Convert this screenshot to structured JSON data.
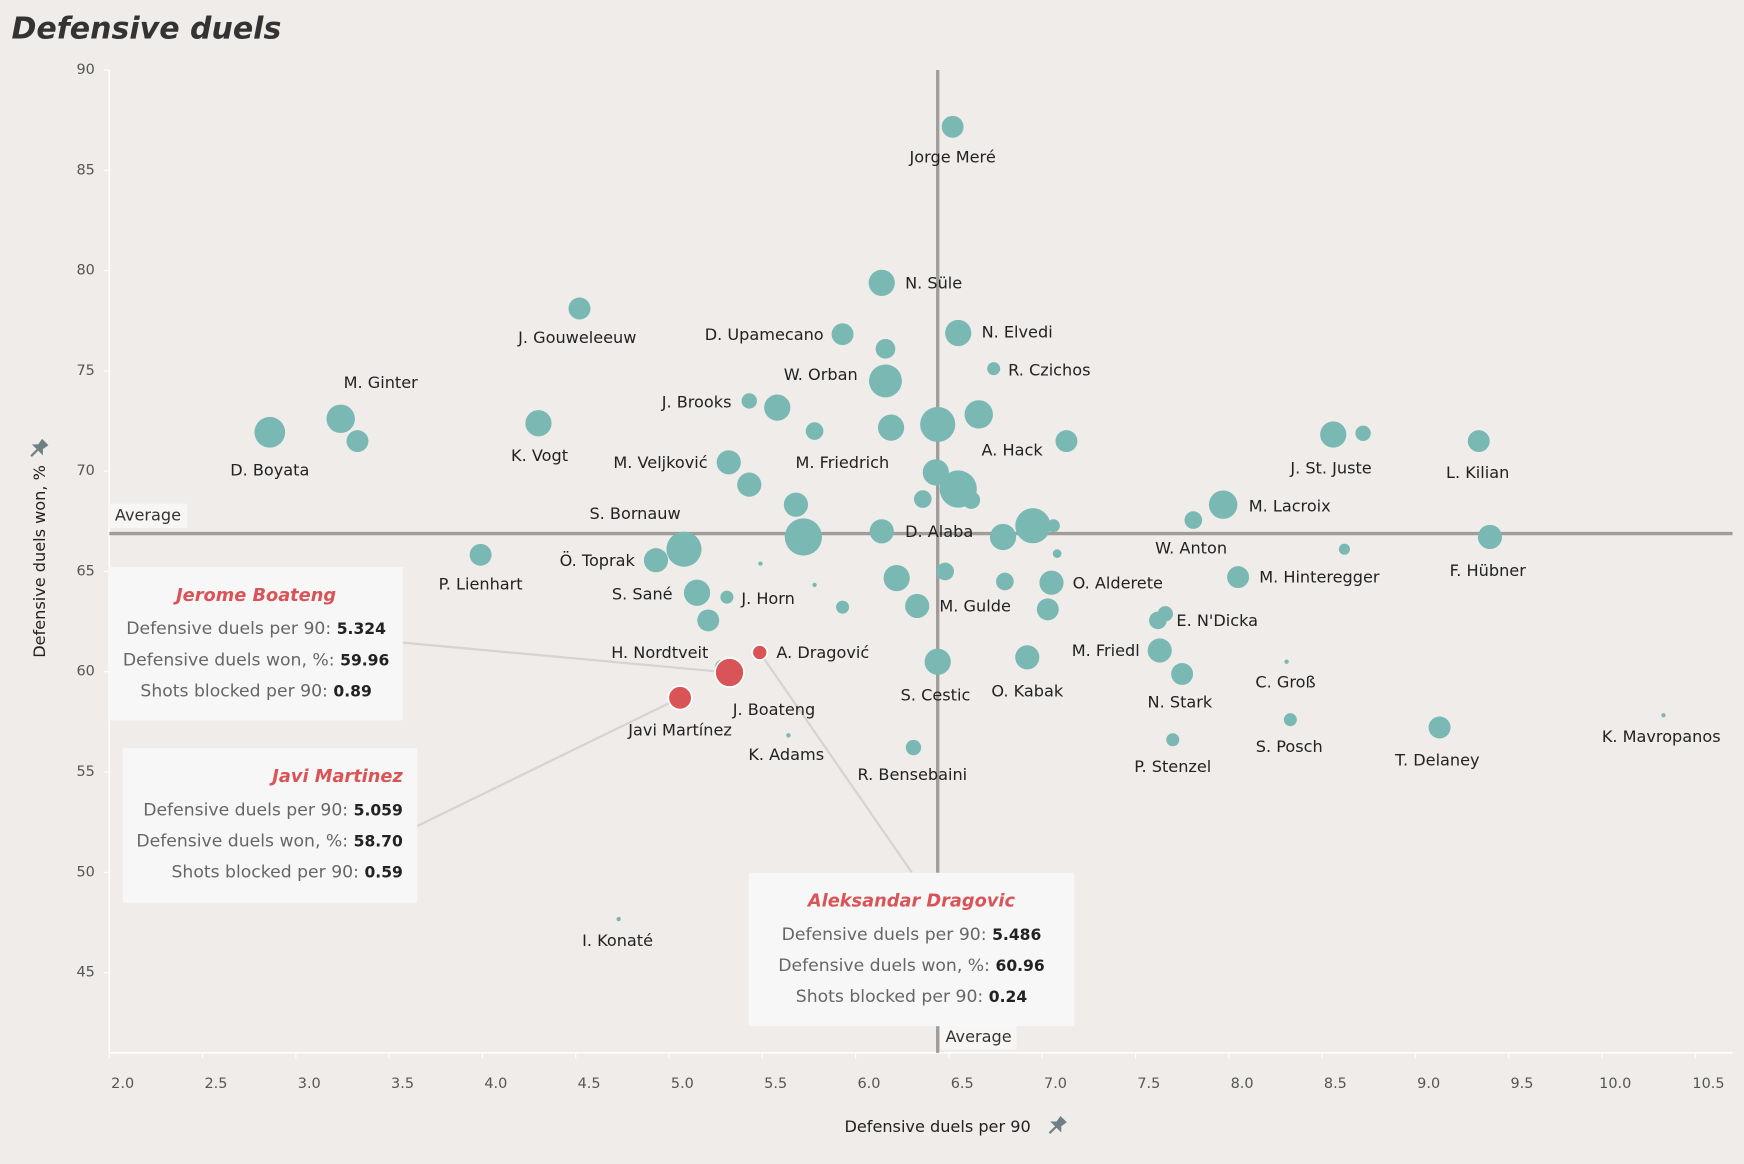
{
  "chart_data": {
    "type": "scatter",
    "title": "Defensive duels",
    "x_label": "Defensive duels per 90",
    "y_label": "Defensive duels won, %",
    "xlim": [
      2.0,
      10.7
    ],
    "ylim": [
      41,
      90
    ],
    "xticks": [
      {
        "value": 2,
        "label": "2.0"
      },
      2.5,
      {
        "value": 3,
        "label": "3.0"
      },
      3.5,
      {
        "value": 4,
        "label": "4.0"
      },
      4.5,
      {
        "value": 5,
        "label": "5.0"
      },
      5.5,
      {
        "value": 6,
        "label": "6.0"
      },
      6.5,
      {
        "value": 7,
        "label": "7.0"
      },
      7.5,
      {
        "value": 8,
        "label": "8.0"
      },
      8.5,
      {
        "value": 9,
        "label": "9.0"
      },
      9.5,
      {
        "value": 10,
        "label": "10.0"
      },
      10.5
    ],
    "yticks": [
      45,
      50,
      55,
      60,
      65,
      70,
      75,
      80,
      85,
      90
    ],
    "average": {
      "x": 6.44,
      "y": 66.89,
      "label": "Average"
    },
    "series": [
      {
        "color": "#79b8b3",
        "labels": [
          "Jorge Meré",
          "N. Süle",
          "J. Gouweleeuw",
          "D. Upamecano",
          null,
          "N. Elvedi",
          "R. Czichos",
          "W. Orban",
          "M. Ginter",
          null,
          "D. Boyata",
          "K. Vogt",
          "J. Brooks",
          null,
          "M. Friedrich",
          null,
          null,
          "A. Hack",
          null,
          "M. Veljković",
          null,
          null,
          null,
          null,
          null,
          "J. St. Juste",
          null,
          "L. Kilian",
          null,
          null,
          "D. Alaba",
          null,
          null,
          null,
          null,
          "M. Lacroix",
          "W. Anton",
          "F. Hübner",
          null,
          "P. Lienhart",
          "Ö. Toprak",
          "S. Bornauw",
          null,
          null,
          "S. Sané",
          "J. Horn",
          null,
          null,
          null,
          null,
          "M. Gulde",
          null,
          "O. Alderete",
          null,
          "M. Hinteregger",
          "E. N'Dicka",
          null,
          "M. Friedl",
          "N. Stark",
          "C. Groß",
          "S. Posch",
          "P. Stenzel",
          "T. Delaney",
          "K. Mavropanos",
          "O. Kabak",
          "S. Cestic",
          "R. Bensebaini",
          "K. Adams",
          "I. Konaté",
          "H. Nordtveit"
        ],
        "x": [
          6.52,
          6.14,
          4.52,
          5.93,
          6.16,
          6.55,
          6.74,
          6.16,
          3.24,
          3.33,
          2.86,
          4.3,
          5.43,
          5.58,
          5.78,
          6.19,
          6.44,
          6.66,
          7.13,
          5.32,
          5.43,
          6.43,
          6.55,
          6.62,
          6.36,
          8.56,
          8.72,
          9.34,
          5.68,
          5.72,
          6.14,
          6.79,
          6.95,
          7.06,
          7.08,
          7.97,
          7.81,
          9.4,
          8.62,
          3.99,
          4.93,
          5.08,
          5.49,
          5.78,
          5.15,
          5.31,
          5.21,
          5.93,
          6.22,
          6.48,
          6.33,
          6.8,
          7.05,
          7.03,
          8.05,
          7.66,
          7.62,
          7.63,
          7.75,
          8.31,
          8.33,
          7.7,
          9.13,
          10.33,
          6.92,
          6.44,
          6.31,
          5.64,
          4.73,
          5.29
        ],
        "values": [
          87.17,
          79.39,
          78.11,
          76.83,
          76.1,
          76.89,
          75.11,
          74.5,
          72.61,
          71.5,
          71.94,
          72.39,
          73.5,
          73.17,
          72.0,
          72.17,
          72.33,
          72.83,
          71.5,
          70.44,
          69.33,
          69.94,
          69.11,
          68.56,
          68.61,
          71.83,
          71.89,
          71.5,
          68.33,
          66.72,
          67.0,
          66.72,
          67.28,
          67.28,
          65.89,
          68.33,
          67.56,
          66.72,
          66.11,
          65.83,
          65.56,
          66.11,
          65.39,
          64.33,
          63.94,
          63.72,
          62.56,
          63.22,
          64.67,
          65.0,
          63.28,
          64.5,
          64.44,
          63.11,
          64.72,
          62.89,
          62.56,
          61.06,
          59.89,
          60.5,
          57.61,
          56.61,
          57.22,
          57.83,
          60.72,
          60.5,
          56.22,
          56.83,
          47.67,
          60.2
        ],
        "sizes": [
          0.51,
          0.73,
          0.51,
          0.51,
          0.41,
          0.73,
          0.18,
          1.15,
          0.86,
          0.51,
          1.0,
          0.73,
          0.25,
          0.73,
          0.33,
          0.73,
          1.31,
          0.86,
          0.51,
          0.62,
          0.62,
          0.73,
          1.47,
          0.33,
          0.33,
          0.73,
          0.25,
          0.51,
          0.62,
          1.47,
          0.62,
          0.73,
          1.31,
          0.18,
          0.08,
          0.86,
          0.33,
          0.62,
          0.13,
          0.51,
          0.62,
          1.31,
          0.02,
          0.02,
          0.73,
          0.18,
          0.51,
          0.18,
          0.73,
          0.33,
          0.62,
          0.33,
          0.62,
          0.51,
          0.51,
          0.25,
          0.33,
          0.62,
          0.51,
          0.02,
          0.18,
          0.18,
          0.51,
          0.02,
          0.62,
          0.73,
          0.25,
          0.02,
          0.02,
          0.3
        ]
      },
      {
        "color": "#d95457",
        "labels": [
          "J. Boateng",
          "Javi Martínez",
          "A. Dragović"
        ],
        "x": [
          5.324,
          5.059,
          5.486
        ],
        "values": [
          59.96,
          58.7,
          60.96
        ],
        "sizes": [
          0.89,
          0.59,
          0.24
        ]
      }
    ],
    "annotations": [
      {
        "title": "Jerome Boateng",
        "rows": [
          {
            "label": "Defensive duels per 90:",
            "value": "5.324"
          },
          {
            "label": "Defensive duels won, %:",
            "value": "59.96"
          },
          {
            "label": "Shots blocked per 90:",
            "value": "0.89"
          }
        ]
      },
      {
        "title": "Javi Martinez",
        "rows": [
          {
            "label": "Defensive duels per 90:",
            "value": "5.059"
          },
          {
            "label": "Defensive duels won, %:",
            "value": "58.70"
          },
          {
            "label": "Shots blocked per 90:",
            "value": "0.59"
          }
        ]
      },
      {
        "title": "Aleksandar Dragovic",
        "rows": [
          {
            "label": "Defensive duels per 90:",
            "value": "5.486"
          },
          {
            "label": "Defensive duels won, %:",
            "value": "60.96"
          },
          {
            "label": "Shots blocked per 90:",
            "value": "0.24"
          }
        ]
      }
    ]
  }
}
